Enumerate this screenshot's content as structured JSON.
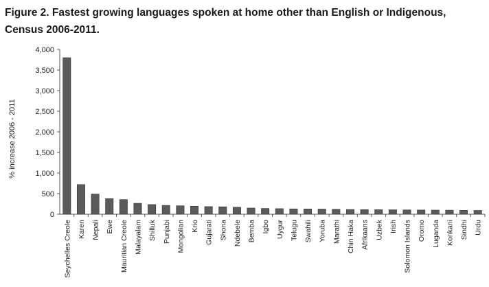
{
  "title_line1": "Figure 2. Fastest growing languages spoken at home other than English or Indigenous,",
  "title_line2": "Census 2006-2011.",
  "chart_data": {
    "type": "bar",
    "ylabel": "% increase 2006 - 2011",
    "xlabel": "",
    "ylim": [
      0,
      4000
    ],
    "yticks": [
      "0",
      "500",
      "1,000",
      "1,500",
      "2,000",
      "2,500",
      "3,000",
      "3,500",
      "4,000"
    ],
    "grid": false,
    "bar_color": "#5b5b5b",
    "categories": [
      "Seychelles Creole",
      "Karen",
      "Nepali",
      "Ewe",
      "Mauritian Creole",
      "Malayalam",
      "Shilluk",
      "Punjabi",
      "Mongolian",
      "Krio",
      "Gujarati",
      "Shona",
      "Ndebele",
      "Bemba",
      "Igbo",
      "Uygur",
      "Telugu",
      "Swahili",
      "Yoruba",
      "Marathi",
      "Chin Haka",
      "Afrikaans",
      "Uzbek",
      "Irish",
      "Solomon Islands",
      "Oromo",
      "Luganda",
      "Konkani",
      "Sindhi",
      "Urdu"
    ],
    "values": [
      3800,
      720,
      490,
      380,
      355,
      265,
      235,
      215,
      205,
      195,
      185,
      180,
      170,
      150,
      140,
      135,
      130,
      128,
      125,
      120,
      115,
      112,
      110,
      108,
      105,
      102,
      100,
      98,
      95,
      92
    ]
  }
}
